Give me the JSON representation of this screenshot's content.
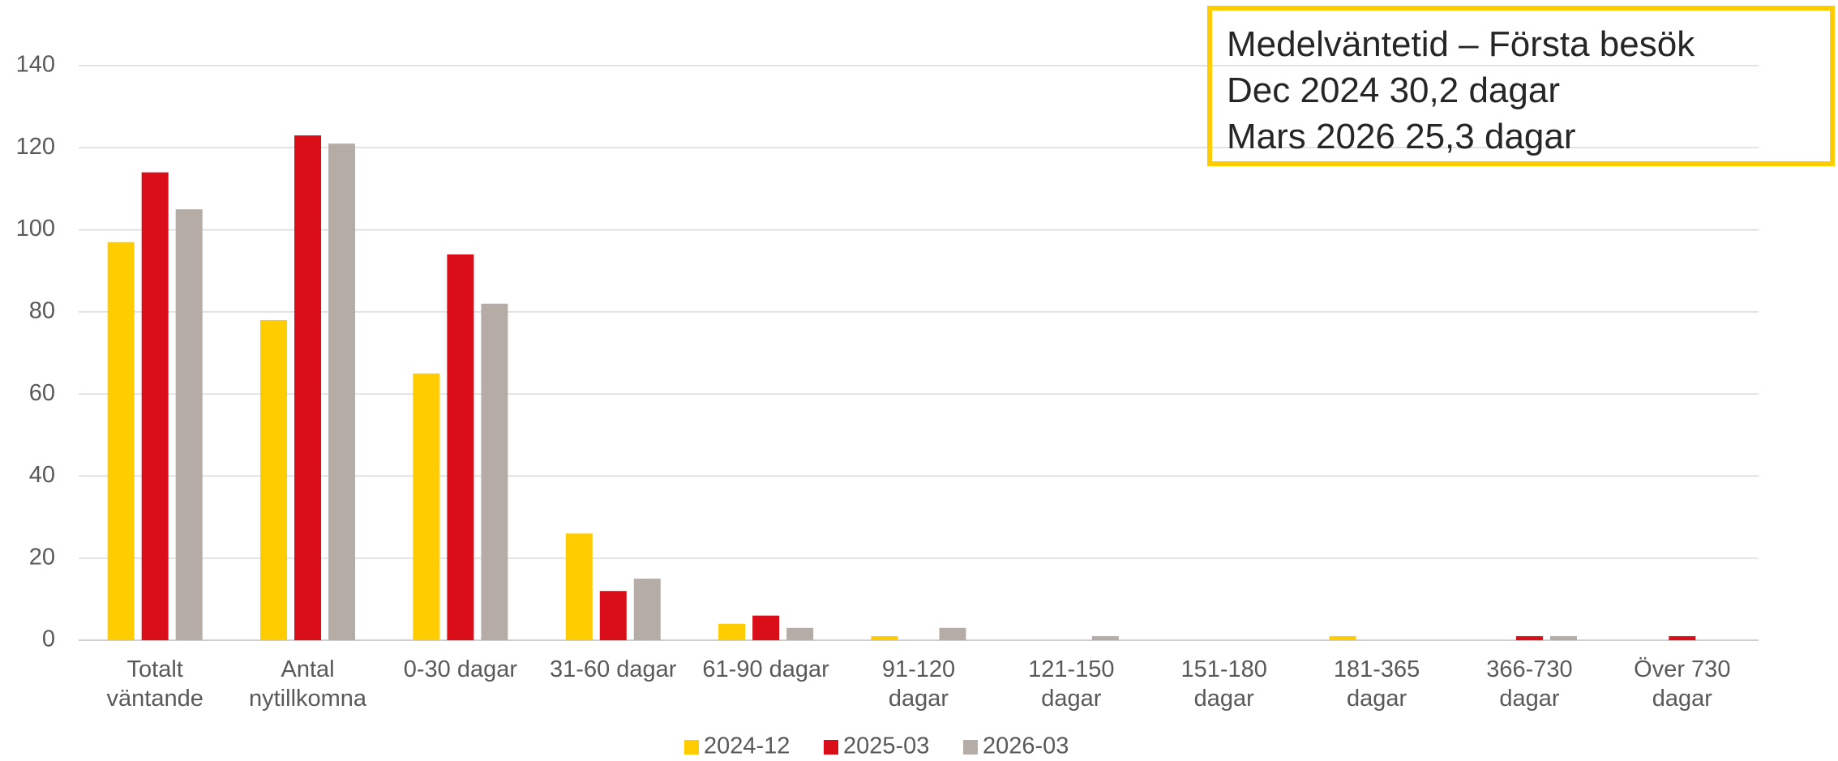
{
  "chart_data": {
    "type": "bar",
    "categories": [
      "Totalt\nväntande",
      "Antal\nnytillkomna",
      "0-30  dagar",
      "31-60 dagar",
      "61-90 dagar",
      "91-120\ndagar",
      "121-150\ndagar",
      "151-180\ndagar",
      "181-365\ndagar",
      "366-730\ndagar",
      "Över 730\ndagar"
    ],
    "series": [
      {
        "name": "2024-12",
        "color": "#FFCC00",
        "values": [
          97,
          78,
          65,
          26,
          4,
          1,
          0,
          0,
          1,
          0,
          0
        ]
      },
      {
        "name": "2025-03",
        "color": "#D90E18",
        "values": [
          114,
          123,
          94,
          12,
          6,
          0,
          0,
          0,
          0,
          1,
          1
        ]
      },
      {
        "name": "2026-03",
        "color": "#B5ADA5",
        "values": [
          105,
          121,
          82,
          15,
          3,
          3,
          1,
          0,
          0,
          1,
          0
        ]
      }
    ],
    "ylim": [
      0,
      140
    ],
    "yticks": [
      0,
      20,
      40,
      60,
      80,
      100,
      120,
      140
    ],
    "grid": true,
    "legend": "bottom",
    "annotation": [
      "Medelväntetid – Första besök",
      "Dec 2024 30,2 dagar",
      "Mars 2026 25,3 dagar"
    ]
  }
}
